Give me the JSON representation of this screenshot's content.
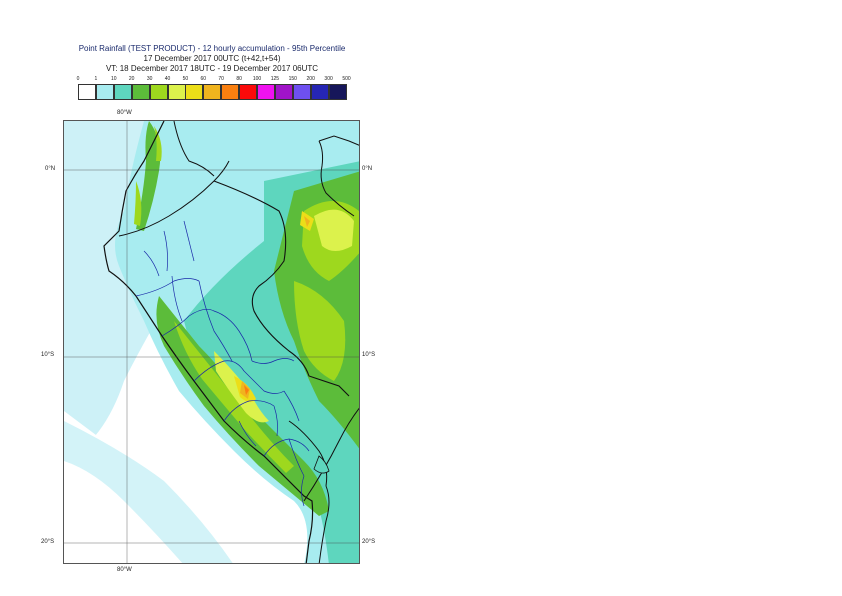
{
  "header": {
    "title": "Point Rainfall (TEST PRODUCT) - 12 hourly accumulation - 95th Percentile",
    "run": "17 December 2017 00UTC (t+42,t+54)",
    "valid": "VT: 18 December 2017 18UTC - 19 December 2017 06UTC"
  },
  "legend": {
    "thresholds": [
      "0",
      "1",
      "10",
      "20",
      "30",
      "40",
      "50",
      "60",
      "70",
      "80",
      "100",
      "125",
      "150",
      "200",
      "300",
      "500"
    ],
    "colors": [
      "#ffffff",
      "#a8ecf0",
      "#5ed6be",
      "#5cbc3a",
      "#9ed81e",
      "#dcf24c",
      "#ecde18",
      "#f0b41e",
      "#fa8010",
      "#fa0a0a",
      "#f012f0",
      "#a014c8",
      "#6e50f0",
      "#2626b4",
      "#16165a"
    ]
  },
  "map": {
    "lon_labels": [
      "80°W",
      "80°W"
    ],
    "lat_labels": [
      "0°N",
      "0°N",
      "10°S",
      "10°S",
      "20°S",
      "20°S"
    ],
    "ocean_color": "#ffffff",
    "border_color": "#111111",
    "admin_color": "#1a2aa8"
  }
}
